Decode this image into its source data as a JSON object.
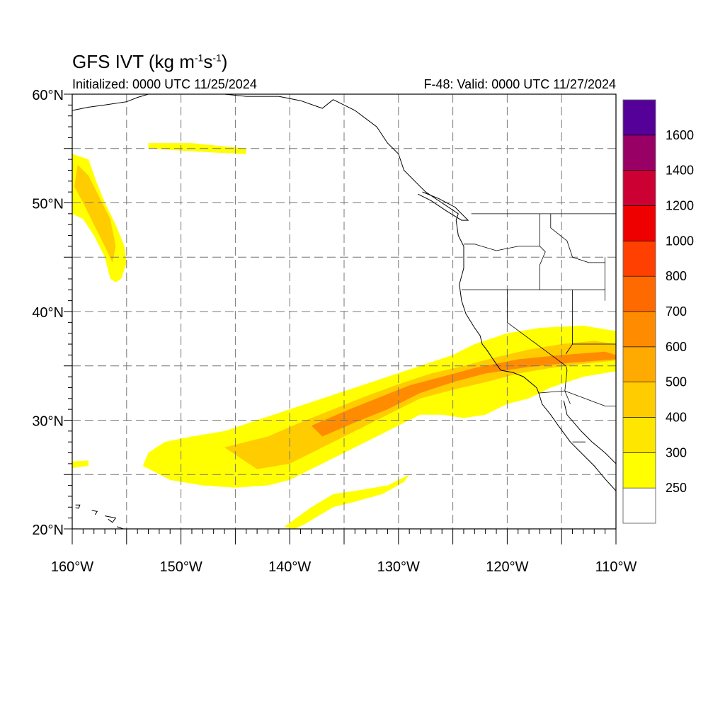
{
  "title": {
    "text": "GFS IVT (kg m",
    "sup1": "-1",
    "mid": "s",
    "sup2": "-1",
    "end": ")"
  },
  "initialized": "Initialized: 0000 UTC 11/25/2024",
  "valid": "F-48: Valid: 0000 UTC 11/27/2024",
  "map": {
    "projection": "equirectangular",
    "lon_range": [
      -160,
      -110
    ],
    "lat_range": [
      20,
      60
    ],
    "gridlines": "dashed",
    "lon_ticks": [
      {
        "lon": -160,
        "label": "160°W"
      },
      {
        "lon": -150,
        "label": "150°W"
      },
      {
        "lon": -140,
        "label": "140°W"
      },
      {
        "lon": -130,
        "label": "130°W"
      },
      {
        "lon": -120,
        "label": "120°W"
      },
      {
        "lon": -110,
        "label": "110°W"
      }
    ],
    "lat_ticks": [
      {
        "lat": 20,
        "label": "20°N"
      },
      {
        "lat": 30,
        "label": "30°N"
      },
      {
        "lat": 40,
        "label": "40°N"
      },
      {
        "lat": 50,
        "label": "50°N"
      },
      {
        "lat": 60,
        "label": "60°N"
      }
    ]
  },
  "colorbar": {
    "levels": [
      {
        "value": 250,
        "color": "#ffff00"
      },
      {
        "value": 300,
        "color": "#ffe600"
      },
      {
        "value": 400,
        "color": "#ffcc00"
      },
      {
        "value": 500,
        "color": "#ffaa00"
      },
      {
        "value": 600,
        "color": "#ff8c00"
      },
      {
        "value": 700,
        "color": "#ff6a00"
      },
      {
        "value": 800,
        "color": "#ff4000"
      },
      {
        "value": 1000,
        "color": "#ee0000"
      },
      {
        "value": 1200,
        "color": "#cc0033"
      },
      {
        "value": 1400,
        "color": "#990066"
      },
      {
        "value": 1600,
        "color": "#550099"
      }
    ],
    "below_color": "#ffffff",
    "labels": [
      "250",
      "300",
      "400",
      "500",
      "600",
      "700",
      "800",
      "1000",
      "1200",
      "1400",
      "1600"
    ]
  },
  "plumes": [
    {
      "name": "main-river",
      "outer": [
        [
          -153.5,
          25.8
        ],
        [
          -153,
          27
        ],
        [
          -151.5,
          28
        ],
        [
          -149,
          28.5
        ],
        [
          -146,
          29
        ],
        [
          -143,
          30
        ],
        [
          -140,
          31
        ],
        [
          -137,
          32
        ],
        [
          -134,
          33
        ],
        [
          -131,
          34
        ],
        [
          -128,
          35
        ],
        [
          -125,
          36
        ],
        [
          -123,
          37
        ],
        [
          -120,
          38
        ],
        [
          -117,
          38.5
        ],
        [
          -113,
          38.7
        ],
        [
          -110,
          38.2
        ],
        [
          -110,
          34.5
        ],
        [
          -113,
          34
        ],
        [
          -116,
          33
        ],
        [
          -118,
          32
        ],
        [
          -120,
          31.5
        ],
        [
          -122,
          30.5
        ],
        [
          -124,
          30.2
        ],
        [
          -126,
          30.5
        ],
        [
          -128,
          30.5
        ],
        [
          -131,
          29
        ],
        [
          -134,
          27.5
        ],
        [
          -137,
          26
        ],
        [
          -140,
          24.5
        ],
        [
          -142,
          24
        ],
        [
          -145,
          23.8
        ],
        [
          -148,
          24
        ],
        [
          -151,
          24.5
        ]
      ],
      "inner": [
        [
          -146,
          27.5
        ],
        [
          -142,
          28.5
        ],
        [
          -139,
          29.8
        ],
        [
          -136,
          31
        ],
        [
          -133,
          32.2
        ],
        [
          -130,
          33.3
        ],
        [
          -127,
          34.3
        ],
        [
          -124,
          35
        ],
        [
          -121,
          35.8
        ],
        [
          -118,
          36.5
        ],
        [
          -115,
          37
        ],
        [
          -112,
          37.3
        ],
        [
          -110,
          37
        ],
        [
          -110,
          35.5
        ],
        [
          -113,
          35.2
        ],
        [
          -116,
          34.8
        ],
        [
          -119,
          34.3
        ],
        [
          -122,
          33.5
        ],
        [
          -125,
          32.8
        ],
        [
          -128,
          32
        ],
        [
          -131,
          30.5
        ],
        [
          -134,
          29
        ],
        [
          -137,
          27.5
        ],
        [
          -140,
          26
        ],
        [
          -143,
          25.5
        ]
      ],
      "core": [
        [
          -138,
          29.5
        ],
        [
          -135,
          30.8
        ],
        [
          -132,
          32
        ],
        [
          -129,
          33.2
        ],
        [
          -126,
          34
        ],
        [
          -123,
          34.8
        ],
        [
          -119,
          35.6
        ],
        [
          -115,
          36
        ],
        [
          -111,
          36.3
        ],
        [
          -110,
          36
        ],
        [
          -110,
          35.6
        ],
        [
          -114,
          35.3
        ],
        [
          -118,
          34.9
        ],
        [
          -122,
          34.3
        ],
        [
          -125,
          33.5
        ],
        [
          -128,
          32.5
        ],
        [
          -131,
          31
        ],
        [
          -134,
          29.8
        ],
        [
          -137,
          28.5
        ]
      ]
    },
    {
      "name": "north-plume",
      "outer": [
        [
          -160,
          54.5
        ],
        [
          -158.5,
          54
        ],
        [
          -157.8,
          52
        ],
        [
          -157,
          50
        ],
        [
          -156,
          48
        ],
        [
          -155.2,
          46
        ],
        [
          -155,
          44.5
        ],
        [
          -155.5,
          43
        ],
        [
          -156,
          42.7
        ],
        [
          -156.5,
          43
        ],
        [
          -157,
          45
        ],
        [
          -158,
          47
        ],
        [
          -159,
          48.5
        ],
        [
          -160,
          49
        ]
      ],
      "inner": [
        [
          -159.5,
          53.5
        ],
        [
          -158.5,
          52.5
        ],
        [
          -157.5,
          50.5
        ],
        [
          -156.5,
          48.5
        ],
        [
          -156,
          46
        ],
        [
          -156.3,
          44.5
        ],
        [
          -157,
          46
        ],
        [
          -158,
          48
        ],
        [
          -159,
          50
        ],
        [
          -159.8,
          51.5
        ]
      ]
    },
    {
      "name": "north-streak",
      "outer": [
        [
          -153,
          55.5
        ],
        [
          -149,
          55.5
        ],
        [
          -146,
          55.2
        ],
        [
          -144,
          55
        ],
        [
          -144,
          54.5
        ],
        [
          -146.5,
          54.6
        ],
        [
          -150,
          54.8
        ],
        [
          -153,
          55
        ]
      ]
    },
    {
      "name": "south-streak",
      "outer": [
        [
          -140.5,
          20.2
        ],
        [
          -138,
          22
        ],
        [
          -136,
          23.2
        ],
        [
          -134,
          23.5
        ],
        [
          -131,
          24
        ],
        [
          -129,
          25
        ],
        [
          -129.5,
          24.3
        ],
        [
          -131.5,
          23.2
        ],
        [
          -134,
          22.5
        ],
        [
          -136,
          22
        ],
        [
          -138.5,
          20.5
        ],
        [
          -139.5,
          20
        ]
      ]
    },
    {
      "name": "west-speck",
      "outer": [
        [
          -160,
          26.2
        ],
        [
          -158.5,
          26.3
        ],
        [
          -158.5,
          25.8
        ],
        [
          -160,
          25.6
        ]
      ]
    }
  ],
  "coast": {
    "west_coast": [
      [
        -136,
        59.5
      ],
      [
        -134,
        58.5
      ],
      [
        -132,
        57
      ],
      [
        -131,
        55.5
      ],
      [
        -130,
        54.5
      ],
      [
        -129.5,
        53
      ],
      [
        -128.5,
        52
      ],
      [
        -127.5,
        51
      ],
      [
        -126,
        50
      ],
      [
        -124.5,
        49
      ],
      [
        -124.7,
        48.4
      ],
      [
        -124.5,
        47
      ],
      [
        -124,
        46
      ],
      [
        -124,
        44
      ],
      [
        -124.4,
        42.5
      ],
      [
        -124.2,
        41
      ],
      [
        -123.8,
        39.8
      ],
      [
        -123,
        38.5
      ],
      [
        -122.5,
        37.8
      ],
      [
        -122.3,
        37
      ],
      [
        -121.9,
        36.5
      ],
      [
        -121.3,
        35.6
      ],
      [
        -120.6,
        34.6
      ],
      [
        -119.5,
        34.4
      ],
      [
        -118.5,
        34
      ],
      [
        -117.3,
        33
      ],
      [
        -117.1,
        32.5
      ],
      [
        -116.8,
        31.5
      ],
      [
        -116,
        30.5
      ],
      [
        -115.3,
        29.5
      ],
      [
        -114.2,
        28
      ],
      [
        -113,
        26.8
      ],
      [
        -112,
        25.8
      ],
      [
        -111,
        24.6
      ],
      [
        -110,
        23.5
      ]
    ],
    "gulf_of_california": [
      [
        -114.8,
        31.8
      ],
      [
        -114.5,
        30.5
      ],
      [
        -113.2,
        29
      ],
      [
        -112.2,
        28
      ],
      [
        -111,
        27
      ],
      [
        -110,
        26
      ]
    ],
    "alaska_top": [
      [
        -160,
        58.5
      ],
      [
        -158.5,
        58.8
      ],
      [
        -157,
        59
      ],
      [
        -155,
        59.3
      ],
      [
        -154,
        59.7
      ],
      [
        -153,
        60
      ]
    ],
    "alaska_right": [
      [
        -146,
        60
      ],
      [
        -144,
        59.8
      ],
      [
        -141,
        59.8
      ],
      [
        -139,
        59.4
      ],
      [
        -137,
        58.7
      ],
      [
        -136,
        59.5
      ]
    ],
    "vancouver_island": [
      [
        -128.2,
        50.8
      ],
      [
        -127,
        50.2
      ],
      [
        -125.5,
        49.2
      ],
      [
        -124.2,
        48.4
      ],
      [
        -123.6,
        48.4
      ],
      [
        -124.8,
        49.6
      ],
      [
        -126.3,
        50.4
      ],
      [
        -127.8,
        51
      ]
    ],
    "hawaii_1": [
      [
        -159.7,
        22.2
      ],
      [
        -159.3,
        22.2
      ],
      [
        -159.4,
        21.9
      ],
      [
        -159.7,
        21.95
      ]
    ],
    "hawaii_2": [
      [
        -158.2,
        21.7
      ],
      [
        -157.7,
        21.6
      ],
      [
        -157.9,
        21.3
      ]
    ],
    "hawaii_3": [
      [
        -157,
        21.2
      ],
      [
        -156,
        21
      ],
      [
        -156.3,
        20.6
      ],
      [
        -156.7,
        20.9
      ]
    ],
    "hawaii_4": [
      [
        -155.9,
        20.2
      ],
      [
        -155,
        19.9
      ]
    ]
  },
  "borders": {
    "us_canada": [
      [
        -123.3,
        49
      ],
      [
        -110,
        49
      ]
    ],
    "us_mexico": [
      [
        -117.1,
        32.5
      ],
      [
        -114.7,
        32.7
      ],
      [
        -111,
        31.3
      ],
      [
        -110,
        31.3
      ]
    ],
    "wa_or": [
      [
        -124,
        46.2
      ],
      [
        -123,
        46.2
      ],
      [
        -121,
        45.6
      ],
      [
        -119,
        46
      ],
      [
        -117,
        46
      ]
    ],
    "wa_id": [
      [
        -117,
        49
      ],
      [
        -117,
        46
      ]
    ],
    "or_id": [
      [
        -117,
        46
      ],
      [
        -116.5,
        45.5
      ],
      [
        -117,
        44.3
      ],
      [
        -117,
        42
      ]
    ],
    "ca_or": [
      [
        -124.2,
        42
      ],
      [
        -111,
        42
      ]
    ],
    "ca_nv": [
      [
        -120,
        42
      ],
      [
        -120,
        39
      ],
      [
        -114.6,
        35
      ],
      [
        -114.5,
        34.6
      ],
      [
        -114.7,
        32.7
      ]
    ],
    "nv_az_ut": [
      [
        -114,
        42
      ],
      [
        -114,
        37
      ],
      [
        -114.6,
        36.1
      ]
    ],
    "az_ut": [
      [
        -114,
        37
      ],
      [
        -110,
        37
      ]
    ],
    "id_mt": [
      [
        -116,
        49
      ],
      [
        -116,
        47.7
      ],
      [
        -114.5,
        46.5
      ],
      [
        -114,
        45
      ],
      [
        -112.5,
        44.5
      ],
      [
        -111,
        44.5
      ]
    ],
    "wy_id": [
      [
        -111,
        45
      ],
      [
        -111,
        41
      ]
    ],
    "sonora_baja": [
      [
        -114.7,
        32.7
      ],
      [
        -114.2,
        31.5
      ]
    ],
    "baja_sur": [
      [
        -114,
        28
      ],
      [
        -112.8,
        28
      ]
    ]
  }
}
